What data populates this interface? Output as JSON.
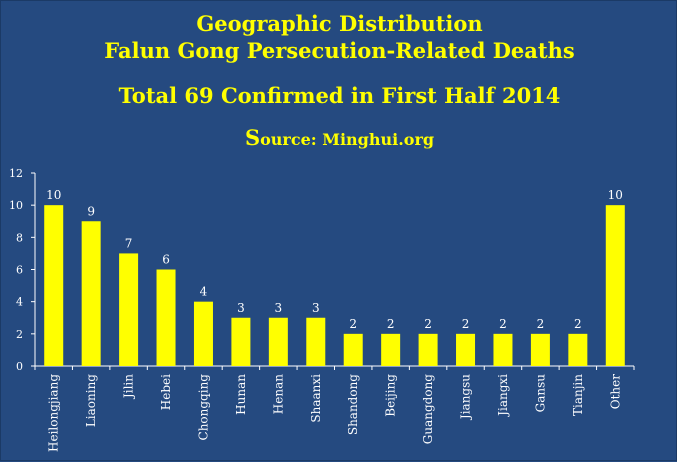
{
  "header": {
    "title_line1": "Geographic Distribution",
    "title_line2": "Falun Gong Persecution-Related Deaths",
    "subtitle": "Total 69 Confirmed in First Half 2014",
    "source_initial": "S",
    "source_rest": "ource: Minghui.org"
  },
  "colors": {
    "background": "#254a80",
    "bar": "#ffff00",
    "text": "#ffffff",
    "title": "#ffff00"
  },
  "chart_data": {
    "type": "bar",
    "title": "Geographic Distribution Falun Gong Persecution-Related Deaths",
    "subtitle": "Total 69 Confirmed in First Half 2014",
    "source": "Source: Minghui.org",
    "categories": [
      "Heilongjiang",
      "Liaoning",
      "Jilin",
      "Hebei",
      "Chongqing",
      "Hunan",
      "Henan",
      "Shaanxi",
      "Shandong",
      "Beijing",
      "Guangdong",
      "Jiangsu",
      "Jiangxi",
      "Gansu",
      "Tianjin",
      "Other"
    ],
    "values": [
      10,
      9,
      7,
      6,
      4,
      3,
      3,
      3,
      2,
      2,
      2,
      2,
      2,
      2,
      2,
      10
    ],
    "xlabel": "",
    "ylabel": "",
    "ylim": [
      0,
      12
    ],
    "yticks": [
      0,
      2,
      4,
      6,
      8,
      10,
      12
    ],
    "grid": false,
    "data_labels": true
  }
}
